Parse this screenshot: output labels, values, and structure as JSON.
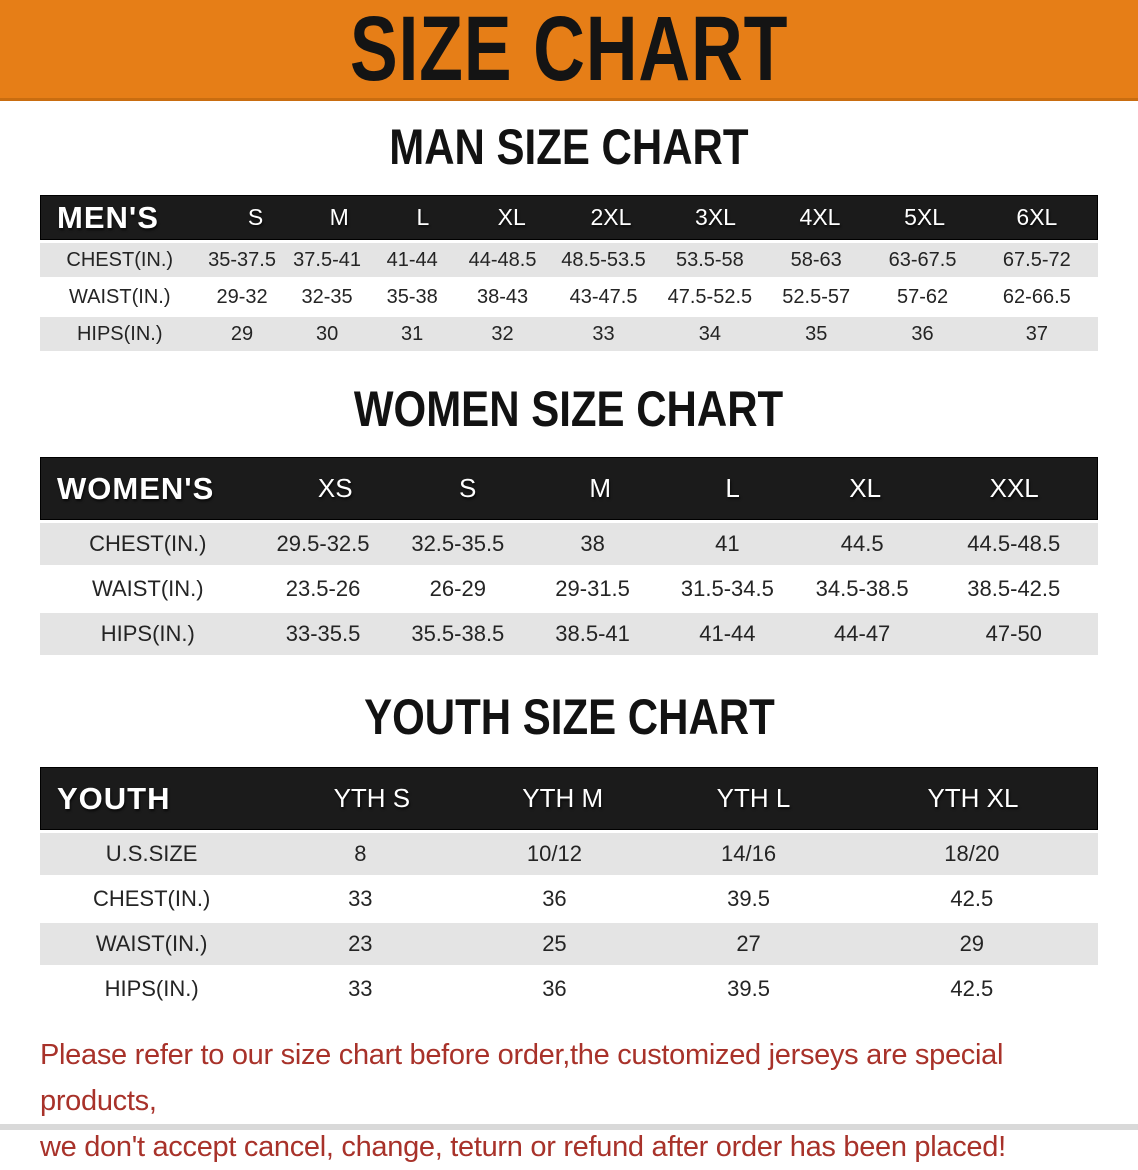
{
  "banner": {
    "title": "SIZE CHART"
  },
  "colors": {
    "banner_orange": "#E67E17",
    "header_black": "#1B1B1B",
    "row_gray": "#E4E4E4",
    "disclaimer_red": "#A8322A"
  },
  "chart_data": [
    {
      "type": "table",
      "title": "MAN SIZE CHART",
      "corner_label": "MEN'S",
      "columns": [
        "S",
        "M",
        "L",
        "XL",
        "2XL",
        "3XL",
        "4XL",
        "5XL",
        "6XL"
      ],
      "rows": [
        {
          "label": "CHEST(IN.)",
          "values": [
            "35-37.5",
            "37.5-41",
            "41-44",
            "44-48.5",
            "48.5-53.5",
            "53.5-58",
            "58-63",
            "63-67.5",
            "67.5-72"
          ]
        },
        {
          "label": "WAIST(IN.)",
          "values": [
            "29-32",
            "32-35",
            "35-38",
            "38-43",
            "43-47.5",
            "47.5-52.5",
            "52.5-57",
            "57-62",
            "62-66.5"
          ]
        },
        {
          "label": "HIPS(IN.)",
          "values": [
            "29",
            "30",
            "31",
            "32",
            "33",
            "34",
            "35",
            "36",
            "37"
          ]
        }
      ]
    },
    {
      "type": "table",
      "title": "WOMEN SIZE CHART",
      "corner_label": "WOMEN'S",
      "columns": [
        "XS",
        "S",
        "M",
        "L",
        "XL",
        "XXL"
      ],
      "rows": [
        {
          "label": "CHEST(IN.)",
          "values": [
            "29.5-32.5",
            "32.5-35.5",
            "38",
            "41",
            "44.5",
            "44.5-48.5"
          ]
        },
        {
          "label": "WAIST(IN.)",
          "values": [
            "23.5-26",
            "26-29",
            "29-31.5",
            "31.5-34.5",
            "34.5-38.5",
            "38.5-42.5"
          ]
        },
        {
          "label": "HIPS(IN.)",
          "values": [
            "33-35.5",
            "35.5-38.5",
            "38.5-41",
            "41-44",
            "44-47",
            "47-50"
          ]
        }
      ]
    },
    {
      "type": "table",
      "title": "YOUTH SIZE CHART",
      "corner_label": "YOUTH",
      "columns": [
        "YTH S",
        "YTH M",
        "YTH L",
        "YTH XL"
      ],
      "rows": [
        {
          "label": "U.S.SIZE",
          "values": [
            "8",
            "10/12",
            "14/16",
            "18/20"
          ]
        },
        {
          "label": "CHEST(IN.)",
          "values": [
            "33",
            "36",
            "39.5",
            "42.5"
          ]
        },
        {
          "label": "WAIST(IN.)",
          "values": [
            "23",
            "25",
            "27",
            "29"
          ]
        },
        {
          "label": "HIPS(IN.)",
          "values": [
            "33",
            "36",
            "39.5",
            "42.5"
          ]
        }
      ]
    }
  ],
  "disclaimer": {
    "line1": "Please refer to our size chart before order,the customized jerseys are special products,",
    "line2": "we don't accept cancel, change, teturn or refund after order has been placed!"
  }
}
